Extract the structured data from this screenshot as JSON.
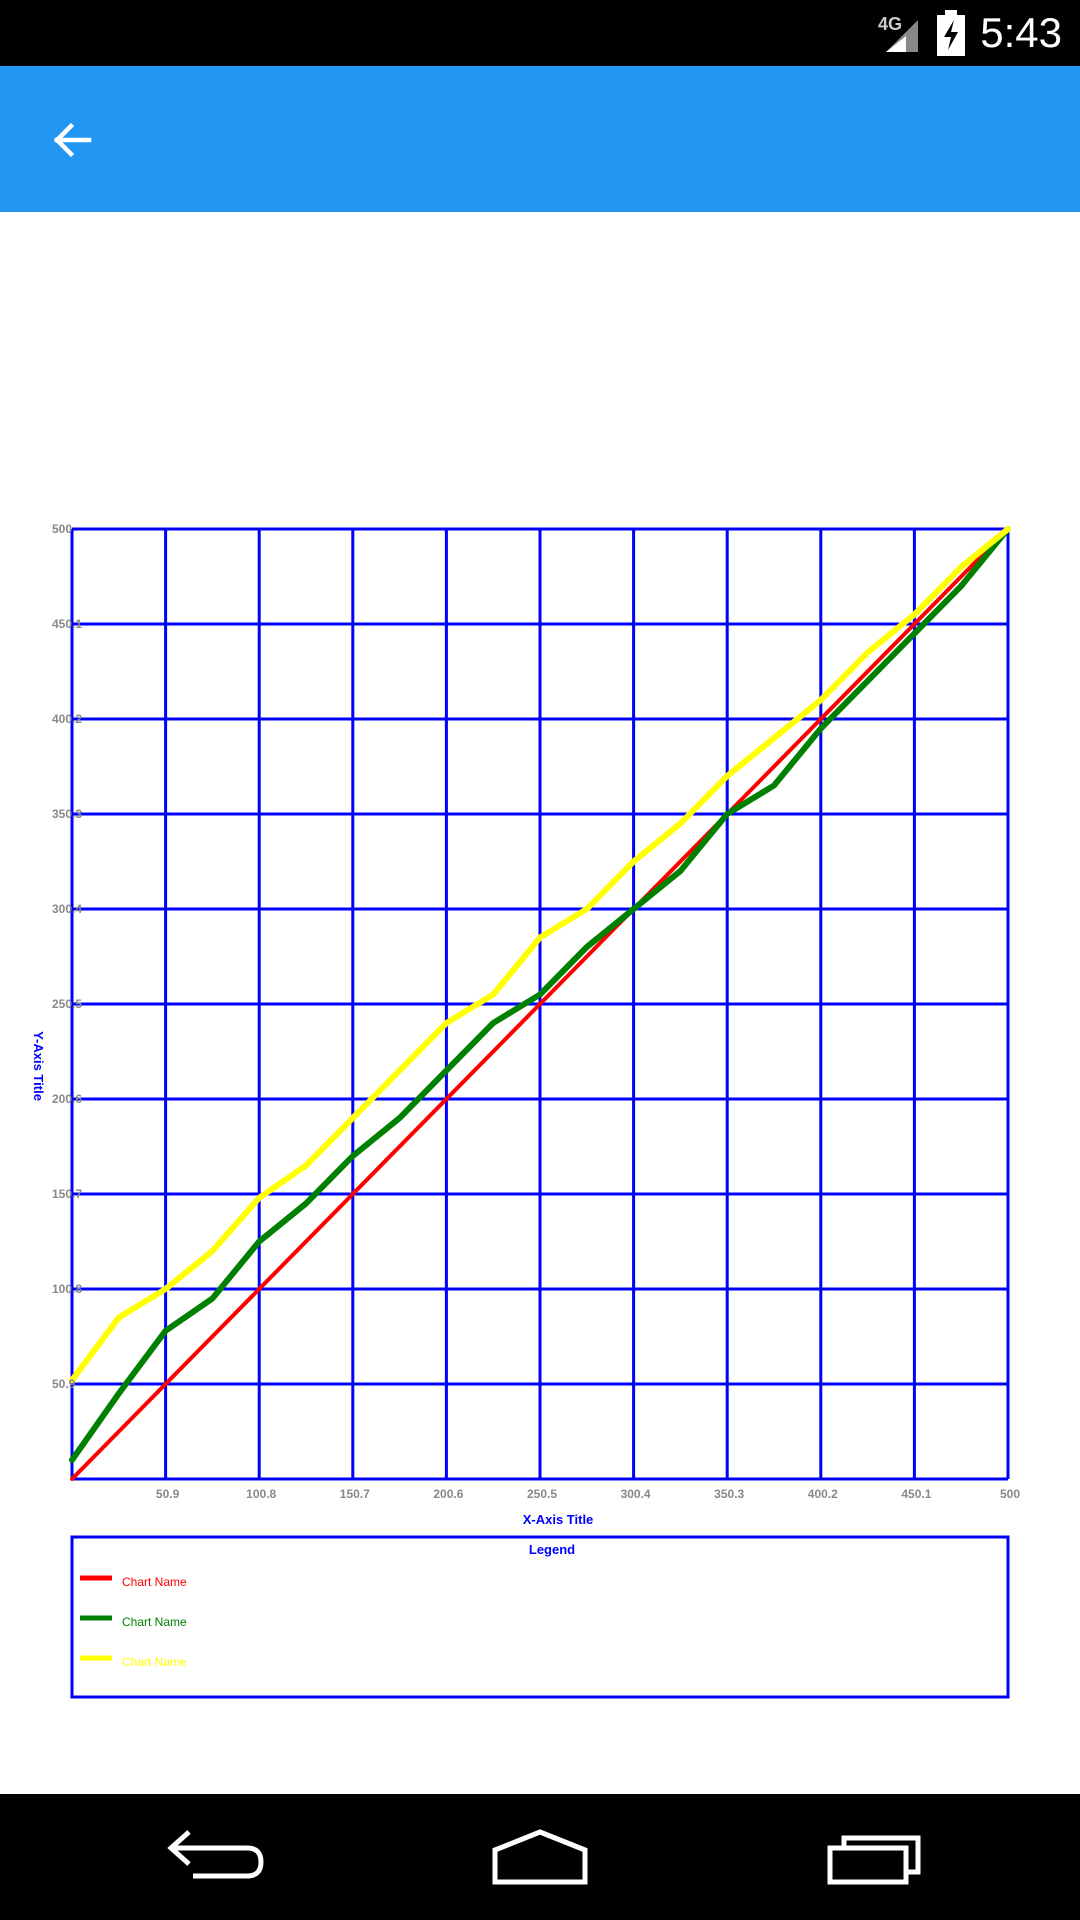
{
  "status_bar": {
    "time": "5:43",
    "network": "4G",
    "icons": [
      "signal-icon",
      "battery-charging-icon"
    ]
  },
  "app_bar": {
    "color": "#2196f3",
    "back_icon": "arrow-back-icon"
  },
  "chart_data": {
    "type": "line",
    "xlabel": "X-Axis Title",
    "ylabel": "Y-Axis Title",
    "xlim": [
      0,
      500
    ],
    "ylim": [
      0,
      500
    ],
    "grid": true,
    "grid_color": "#0000ff",
    "x_ticks": [
      "50.9",
      "100.8",
      "150.7",
      "200.6",
      "250.5",
      "300.4",
      "350.3",
      "400.2",
      "450.1",
      "500"
    ],
    "y_ticks": [
      "50.9",
      "100.8",
      "150.7",
      "200.6",
      "250.5",
      "300.4",
      "350.3",
      "400.2",
      "450.1",
      "500"
    ],
    "legend": {
      "title": "Legend",
      "placement": "bottom",
      "entries": [
        {
          "name": "Chart Name",
          "color": "#ff0000"
        },
        {
          "name": "Chart Name",
          "color": "#008000"
        },
        {
          "name": "Chart Name",
          "color": "#ffff00"
        }
      ]
    },
    "series": [
      {
        "name": "Chart Name",
        "color": "#ff0000",
        "x": [
          0,
          500
        ],
        "y": [
          0,
          500
        ]
      },
      {
        "name": "Chart Name",
        "color": "#008000",
        "x": [
          0,
          25,
          50,
          75,
          100,
          125,
          150,
          175,
          200,
          225,
          250,
          275,
          300,
          325,
          350,
          375,
          400,
          425,
          450,
          475,
          500
        ],
        "y": [
          10,
          45,
          78,
          95,
          125,
          145,
          170,
          190,
          215,
          240,
          255,
          280,
          300,
          320,
          350,
          365,
          395,
          420,
          445,
          470,
          500
        ]
      },
      {
        "name": "Chart Name",
        "color": "#ffff00",
        "x": [
          0,
          25,
          50,
          75,
          100,
          125,
          150,
          175,
          200,
          225,
          250,
          275,
          300,
          325,
          350,
          375,
          400,
          425,
          450,
          475,
          500
        ],
        "y": [
          52,
          85,
          100,
          120,
          148,
          165,
          190,
          215,
          240,
          255,
          285,
          300,
          325,
          345,
          370,
          390,
          410,
          435,
          455,
          480,
          500
        ]
      }
    ]
  },
  "nav_bar": {
    "buttons": [
      "back-nav-icon",
      "home-icon",
      "recents-icon"
    ]
  }
}
